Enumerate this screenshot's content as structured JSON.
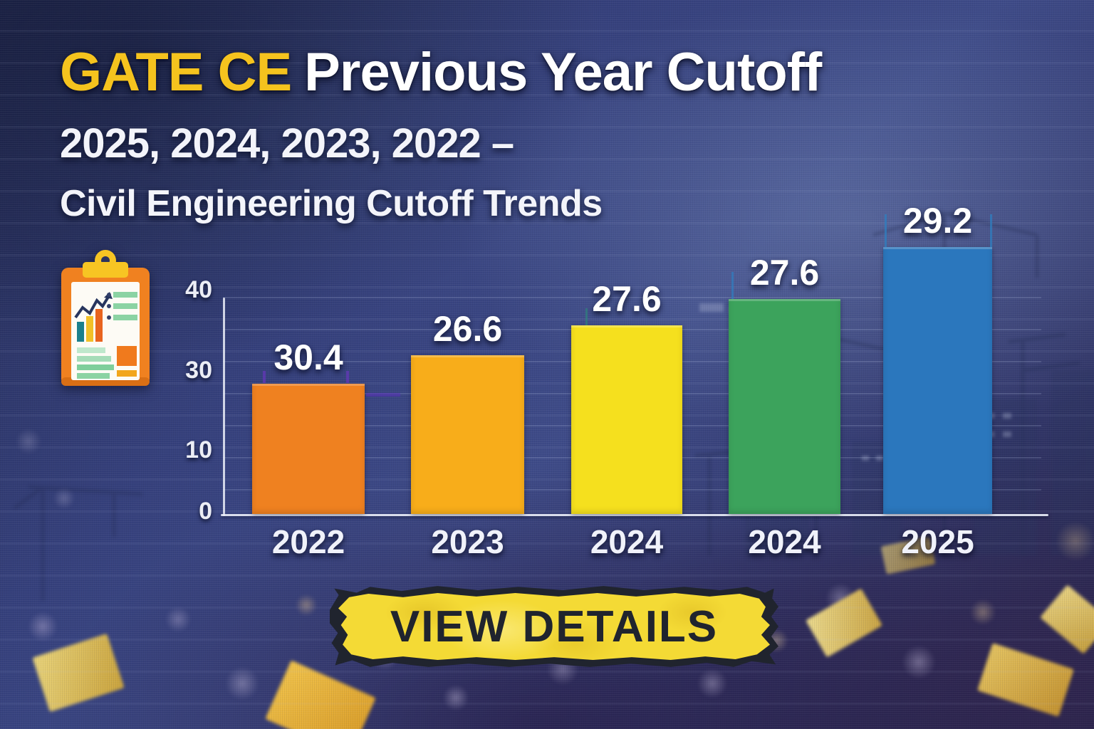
{
  "header": {
    "title_highlight": "GATE CE",
    "title_rest": "Previous Year Cutoff",
    "subtitle": "2025, 2024, 2023, 2022 –",
    "subtitle2": "Civil Engineering Cutoff Trends"
  },
  "cta": {
    "label": "VIEW DETAILS"
  },
  "icons": {
    "clipboard": "clipboard-chart-icon"
  },
  "colors": {
    "title_highlight": "#F5C31E",
    "title_text": "#FFFFFF",
    "axis": "#ECEEF6",
    "cta_bg": "#F4DA35",
    "cta_text": "#20242E"
  },
  "chart_data": {
    "type": "bar",
    "title": "",
    "xlabel": "",
    "ylabel": "",
    "categories": [
      "2022",
      "2023",
      "2024",
      "2024",
      "2025"
    ],
    "values": [
      30.4,
      26.6,
      27.6,
      27.6,
      29.2
    ],
    "value_labels": [
      "30.4",
      "26.6",
      "27.6",
      "27.6",
      "29.2"
    ],
    "bar_colors": [
      "#EF8120",
      "#F8AD1A",
      "#F5E01E",
      "#3CA35C",
      "#2B77BD"
    ],
    "yticks": [
      "40",
      "30",
      "10",
      "0"
    ],
    "ylim": [
      0,
      40
    ],
    "grid": true,
    "legend": false
  }
}
